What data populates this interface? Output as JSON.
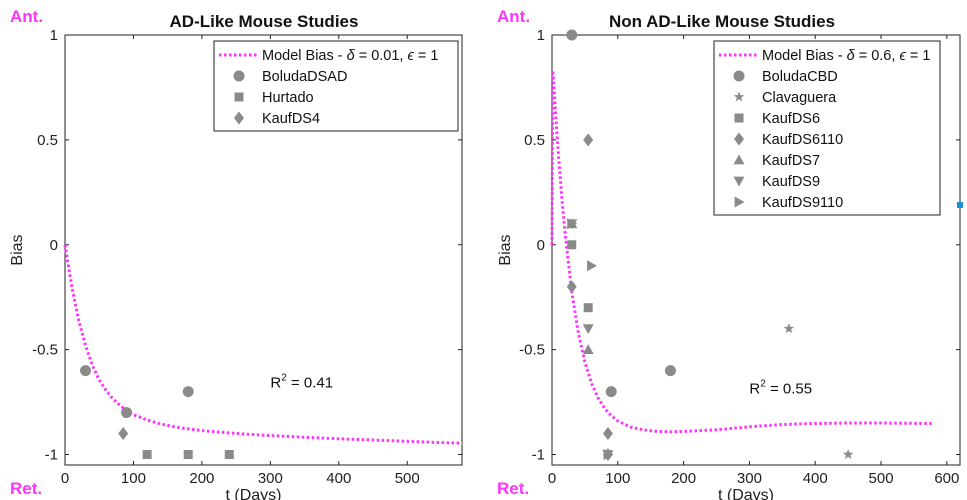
{
  "chart_data": [
    {
      "type": "scatter",
      "title": "AD-Like Mouse Studies",
      "xlabel": "t (Days)",
      "ylabel": "Bias",
      "xlim": [
        0,
        580
      ],
      "ylim": [
        -1.05,
        1
      ],
      "xticks": [
        "0",
        "100",
        "200",
        "300",
        "400",
        "500"
      ],
      "yticks": [
        "1",
        "0.5",
        "0",
        "-0.5",
        "-1"
      ],
      "top_marker": "Ant.",
      "bottom_marker": "Ret.",
      "annotation": {
        "prefix": "R",
        "sup": "2",
        "suffix": " = 0.41",
        "x": 300,
        "y": -0.68
      },
      "legend_position": "top-right",
      "model": {
        "name": "Model Bias - δ = 0.01, ϵ = 1",
        "label_parts": [
          "Model Bias - ",
          "δ",
          " = 0.01, ",
          "ϵ",
          " = 1"
        ],
        "color": "#ff33ff",
        "x": [
          0,
          10,
          20,
          30,
          40,
          50,
          60,
          70,
          80,
          90,
          100,
          120,
          140,
          160,
          180,
          200,
          250,
          300,
          350,
          400,
          450,
          500,
          550,
          580
        ],
        "y": [
          0,
          -0.2,
          -0.36,
          -0.48,
          -0.575,
          -0.645,
          -0.695,
          -0.735,
          -0.765,
          -0.79,
          -0.81,
          -0.835,
          -0.855,
          -0.868,
          -0.878,
          -0.886,
          -0.9,
          -0.91,
          -0.918,
          -0.925,
          -0.931,
          -0.937,
          -0.943,
          -0.946
        ]
      },
      "series": [
        {
          "name": "BoludaDSAD",
          "marker": "circle",
          "x": [
            30,
            90,
            180
          ],
          "y": [
            -0.6,
            -0.8,
            -0.7
          ]
        },
        {
          "name": "Hurtado",
          "marker": "square",
          "x": [
            120,
            180,
            240
          ],
          "y": [
            -1,
            -1,
            -1
          ]
        },
        {
          "name": "KaufDS4",
          "marker": "diamond",
          "x": [
            85
          ],
          "y": [
            -0.9
          ]
        }
      ]
    },
    {
      "type": "scatter",
      "title": "Non AD-Like Mouse Studies",
      "xlabel": "t (Days)",
      "ylabel": "Bias",
      "xlim": [
        0,
        620
      ],
      "ylim": [
        -1.05,
        1
      ],
      "xticks": [
        "0",
        "100",
        "200",
        "300",
        "400",
        "500",
        "600"
      ],
      "yticks": [
        "1",
        "0.5",
        "0",
        "-0.5",
        "-1"
      ],
      "top_marker": "Ant.",
      "bottom_marker": "Ret.",
      "annotation": {
        "prefix": "R",
        "sup": "2",
        "suffix": " = 0.55",
        "x": 300,
        "y": -0.71
      },
      "legend_position": "top-right",
      "model": {
        "name": "Model Bias - δ = 0.6, ϵ = 1",
        "label_parts": [
          "Model Bias - ",
          "δ",
          " = 0.6, ",
          "ϵ",
          " = 1"
        ],
        "color": "#ff33ff",
        "x": [
          0,
          1,
          3,
          6,
          10,
          15,
          20,
          30,
          40,
          50,
          60,
          70,
          80,
          90,
          100,
          120,
          140,
          160,
          180,
          200,
          250,
          300,
          350,
          400,
          450,
          500,
          550,
          580
        ],
        "y": [
          0,
          0.83,
          0.75,
          0.6,
          0.42,
          0.22,
          0.05,
          -0.22,
          -0.42,
          -0.56,
          -0.66,
          -0.73,
          -0.78,
          -0.815,
          -0.84,
          -0.87,
          -0.883,
          -0.89,
          -0.892,
          -0.89,
          -0.882,
          -0.868,
          -0.857,
          -0.852,
          -0.85,
          -0.85,
          -0.851,
          -0.852
        ]
      },
      "series": [
        {
          "name": "BoludaCBD",
          "marker": "circle",
          "x": [
            30,
            90,
            180
          ],
          "y": [
            1,
            -0.7,
            -0.6
          ]
        },
        {
          "name": "Clavaguera",
          "marker": "star",
          "x": [
            360,
            450
          ],
          "y": [
            -0.4,
            -1
          ]
        },
        {
          "name": "KaufDS6",
          "marker": "square",
          "x": [
            30,
            55
          ],
          "y": [
            0,
            -0.3
          ]
        },
        {
          "name": "KaufDS6110",
          "marker": "diamond",
          "x": [
            30,
            55,
            85,
            85
          ],
          "y": [
            -0.2,
            0.5,
            -0.9,
            -1
          ]
        },
        {
          "name": "KaufDS7",
          "marker": "triangle-up",
          "x": [
            30,
            55
          ],
          "y": [
            0.1,
            -0.5
          ]
        },
        {
          "name": "KaufDS9",
          "marker": "triangle-down",
          "x": [
            30,
            55,
            85
          ],
          "y": [
            0.1,
            -0.4,
            -1
          ]
        },
        {
          "name": "KaufDS9110",
          "marker": "triangle-right",
          "x": [
            30,
            60,
            85
          ],
          "y": [
            0.1,
            -0.1,
            -1
          ]
        }
      ]
    }
  ],
  "colors": {
    "marker": "#8a8a8a",
    "model_line": "#ff33ff",
    "ant_ret_label": "#ff33ff",
    "stray_square": "#1e90d6"
  }
}
